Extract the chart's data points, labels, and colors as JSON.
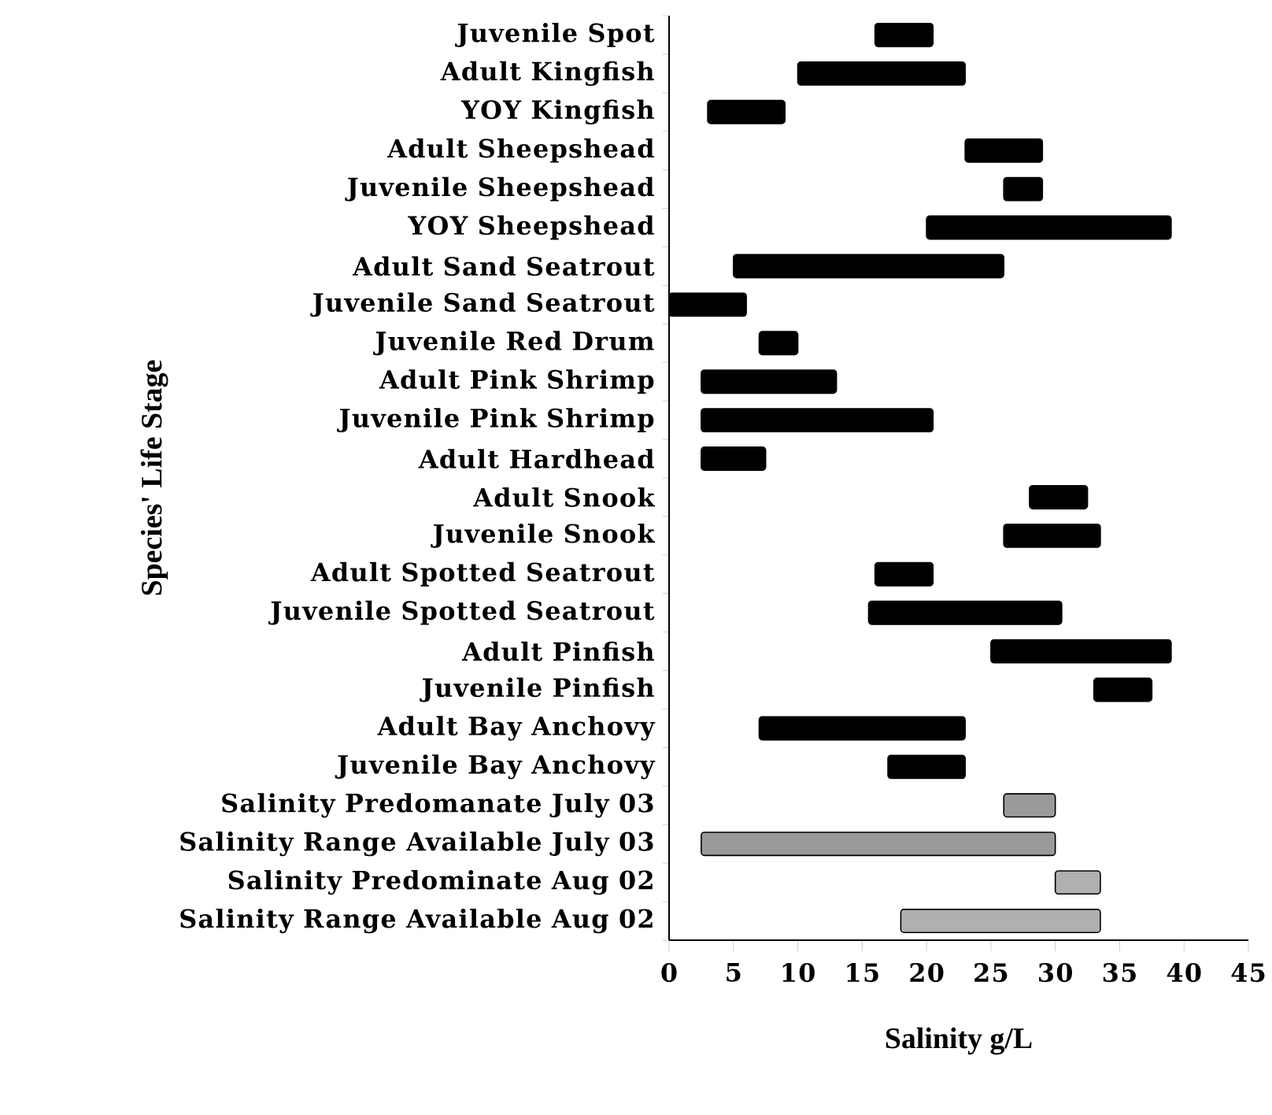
{
  "chart_data": {
    "type": "bar",
    "orientation": "horizontal",
    "xlabel": "Salinity g/L",
    "ylabel": "Species' Life Stage",
    "categories": [
      "Juvenile Spot",
      "Adult Kingfish",
      "YOY Kingfish",
      "Adult Sheepshead",
      "Juvenile Sheepshead",
      "YOY Sheepshead",
      "Adult Sand Seatrout",
      "Juvenile Sand Seatrout",
      "Juvenile Red Drum",
      "Adult Pink Shrimp",
      "Juvenile Pink Shrimp",
      "Adult Hardhead",
      "Adult Snook",
      "Juvenile Snook",
      "Adult Spotted Seatrout",
      "Juvenile Spotted Seatrout",
      "Adult Pinfish",
      "Juvenile Pinfish",
      "Adult Bay Anchovy",
      "Juvenile Bay Anchovy",
      "Salinity Predomanate July 03",
      "Salinity Range Available July 03",
      "Salinity Predominate Aug 02",
      "Salinity Range Available Aug 02"
    ],
    "base": [
      16,
      10,
      3,
      23,
      26,
      20,
      5,
      0,
      7,
      2.5,
      2.5,
      2.5,
      28,
      26,
      16,
      15.5,
      25,
      33,
      7,
      17,
      26,
      2.5,
      30,
      18
    ],
    "values": [
      4.5,
      13,
      6,
      6,
      3,
      19,
      21,
      6,
      3,
      10.5,
      18,
      5,
      4.5,
      7.5,
      4.5,
      15,
      14,
      4.5,
      16,
      6,
      4,
      27.5,
      3.5,
      15.5
    ],
    "colors": [
      "#000000",
      "#000000",
      "#000000",
      "#000000",
      "#000000",
      "#000000",
      "#000000",
      "#000000",
      "#000000",
      "#000000",
      "#000000",
      "#000000",
      "#000000",
      "#000000",
      "#000000",
      "#000000",
      "#000000",
      "#000000",
      "#000000",
      "#000000",
      "#9a9a9a",
      "#9a9a9a",
      "#b0b0b0",
      "#b0b0b0"
    ],
    "xlim": [
      0,
      45
    ],
    "xticks": [
      0,
      5,
      10,
      15,
      20,
      25,
      30,
      35,
      40,
      45
    ]
  }
}
